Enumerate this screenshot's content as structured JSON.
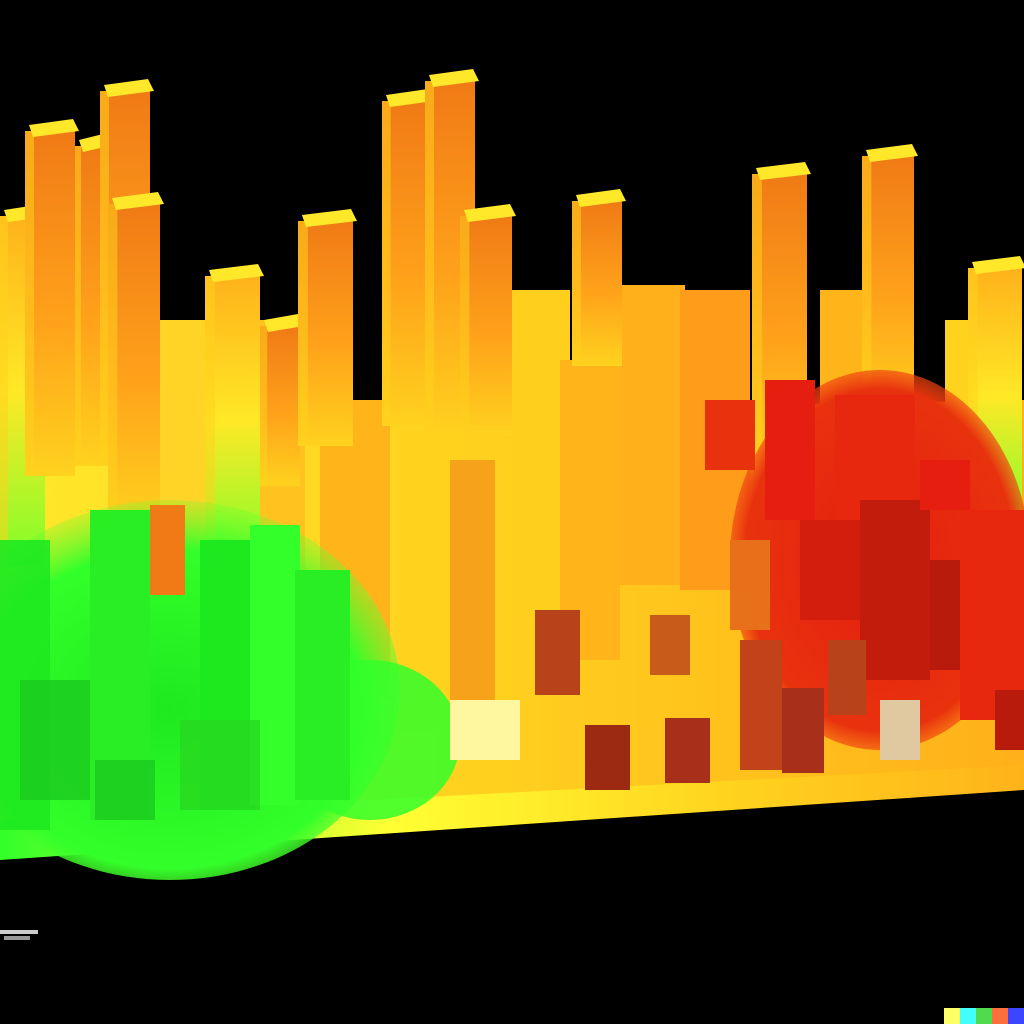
{
  "palette": {
    "background": "#000000",
    "yellow": "#ffff33",
    "amber": "#ffc21a",
    "orange": "#f6871a",
    "deep_orange": "#e85a12",
    "red": "#e51e10",
    "dark_red": "#b81b0c",
    "green": "#33ff2a",
    "bright_green": "#1de91f",
    "cream": "#fff6a0"
  },
  "signature_colors": [
    "#ffff66",
    "#42ffff",
    "#51da4c",
    "#ff6e3c",
    "#3c46ff"
  ]
}
